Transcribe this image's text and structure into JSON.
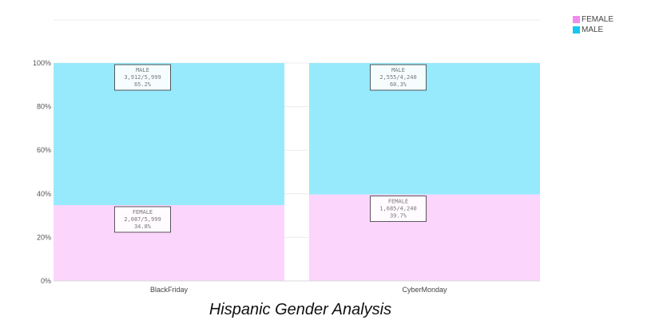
{
  "chart_data": {
    "type": "bar",
    "stacked": true,
    "percent": true,
    "categories": [
      "BlackFriday",
      "CyberMonday"
    ],
    "series": [
      {
        "name": "FEMALE",
        "color": "#fcd5fc",
        "legend_color": "#f08cf0",
        "counts": [
          "2,087/5,999",
          "1,685/4,240"
        ],
        "pct_labels": [
          "34.8%",
          "39.7%"
        ],
        "values": [
          34.8,
          39.7
        ]
      },
      {
        "name": "MALE",
        "color": "#97eafc",
        "legend_color": "#14c8f0",
        "counts": [
          "3,912/5,999",
          "2,555/4,240"
        ],
        "pct_labels": [
          "65.2%",
          "60.3%"
        ],
        "values": [
          65.2,
          60.3
        ]
      }
    ],
    "y_ticks": [
      "0%",
      "20%",
      "40%",
      "60%",
      "80%",
      "100%"
    ],
    "ylim": [
      0,
      100
    ],
    "grid": true,
    "legend_position": "top-right",
    "caption": "Hispanic Gender Analysis"
  }
}
